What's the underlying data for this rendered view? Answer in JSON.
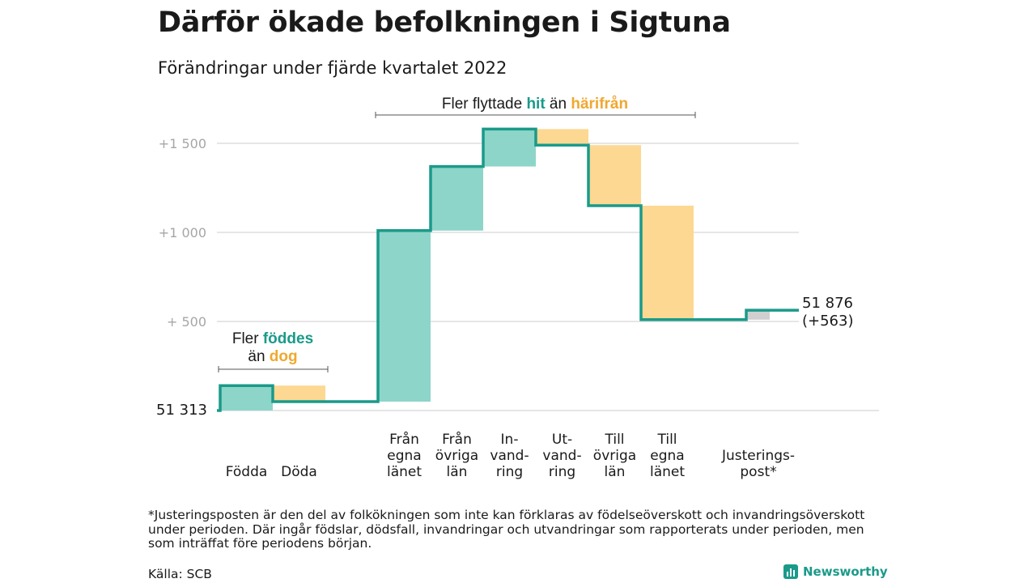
{
  "title": "Därför ökade befolkningen i Sigtuna",
  "subtitle": "Förändringar under fjärde kvartalet 2022",
  "chart_data": {
    "type": "waterfall",
    "start_value_label": "51 313",
    "end_value_label": "51 876",
    "end_change_label": "(+563)",
    "y_ticks": [
      "+ 500",
      "+1 000",
      "+1 500"
    ],
    "y_tick_values": [
      500,
      1000,
      1500
    ],
    "ylim": [
      0,
      1650
    ],
    "steps": [
      {
        "label": [
          "Födda"
        ],
        "delta": 140,
        "kind": "in"
      },
      {
        "label": [
          "Döda"
        ],
        "delta": -90,
        "kind": "out"
      },
      {
        "label": [
          "Från",
          "egna",
          "länet"
        ],
        "delta": 960,
        "kind": "in"
      },
      {
        "label": [
          "Från",
          "övriga",
          "län"
        ],
        "delta": 360,
        "kind": "in"
      },
      {
        "label": [
          "In-",
          "vand-",
          "ring"
        ],
        "delta": 210,
        "kind": "in"
      },
      {
        "label": [
          "Ut-",
          "vand-",
          "ring"
        ],
        "delta": -90,
        "kind": "out"
      },
      {
        "label": [
          "Till",
          "övriga",
          "län"
        ],
        "delta": -340,
        "kind": "out"
      },
      {
        "label": [
          "Till",
          "egna",
          "länet"
        ],
        "delta": -640,
        "kind": "out"
      },
      {
        "label": [
          "Justerings-",
          "post*"
        ],
        "delta": 53,
        "kind": "adjust"
      }
    ],
    "colors": {
      "in": "#8dd5c9",
      "out": "#fcd893",
      "adjust": "#cfcfcf",
      "line": "#1a9a8a",
      "grid": "#dedede"
    }
  },
  "annotations": {
    "births": {
      "line1_prefix": "Fler ",
      "line1_highlight": "föddes",
      "line2_prefix": "än ",
      "line2_highlight": "dog"
    },
    "migration": {
      "prefix": "Fler flyttade ",
      "highlight1": "hit",
      "middle": " än ",
      "highlight2": "härifrån"
    }
  },
  "footnote": "*Justeringsposten är den del av folkökningen som inte kan förklaras av födelseöverskott och invandringsöverskott under perioden. Där ingår födslar, dödsfall, invandringar och utvandringar som rapporterats under perioden, men som inträffat före periodens början.",
  "source": "Källa: SCB",
  "brand": "Newsworthy"
}
